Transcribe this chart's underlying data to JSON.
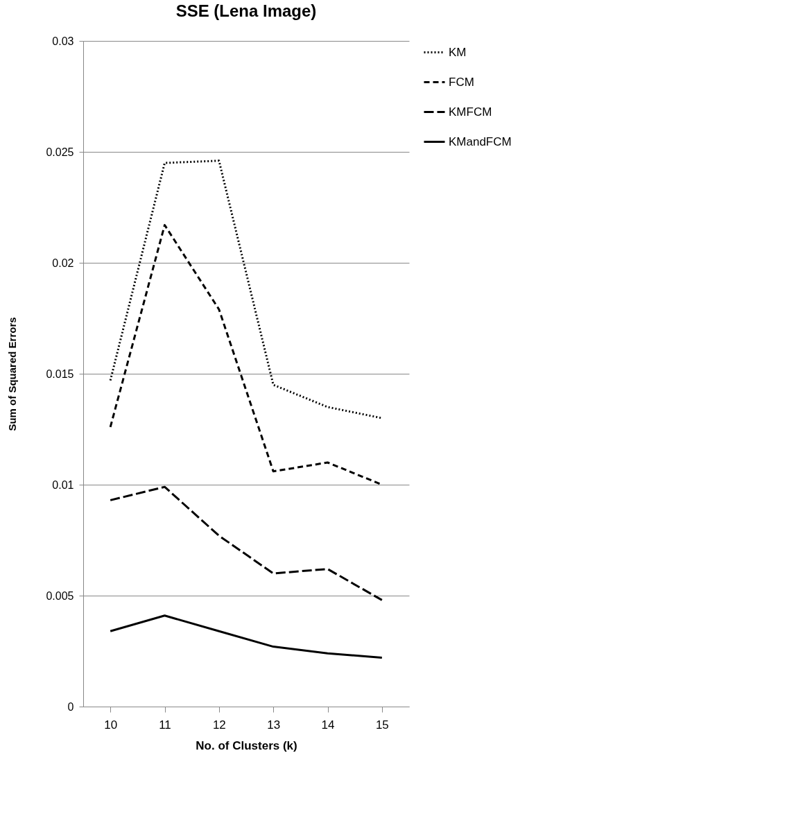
{
  "chart_data": {
    "type": "line",
    "title": "SSE (Lena Image)",
    "xlabel": "No. of Clusters (k)",
    "ylabel": "Sum of Squared Errors",
    "categories": [
      "10",
      "11",
      "12",
      "13",
      "14",
      "15"
    ],
    "series": [
      {
        "name": "KM",
        "color": "#000000",
        "line_style": "dotted",
        "values": [
          0.0147,
          0.0245,
          0.0246,
          0.0145,
          0.0135,
          0.013
        ]
      },
      {
        "name": "FCM",
        "color": "#000000",
        "line_style": "dashed",
        "values": [
          0.0126,
          0.0217,
          0.0179,
          0.0106,
          0.011,
          0.01
        ]
      },
      {
        "name": "KMFCM",
        "color": "#000000",
        "line_style": "dashed",
        "values": [
          0.0093,
          0.0099,
          0.0077,
          0.006,
          0.0062,
          0.0048
        ]
      },
      {
        "name": "KMandFCM",
        "color": "#000000",
        "line_style": "solid",
        "values": [
          0.0034,
          0.0041,
          0.0034,
          0.0027,
          0.0024,
          0.0022
        ]
      }
    ],
    "ylim": [
      0,
      0.03
    ],
    "yticks": [
      0,
      0.005,
      0.01,
      0.015,
      0.02,
      0.025,
      0.03
    ],
    "grid": "y",
    "legend": "right",
    "marker": "none"
  }
}
